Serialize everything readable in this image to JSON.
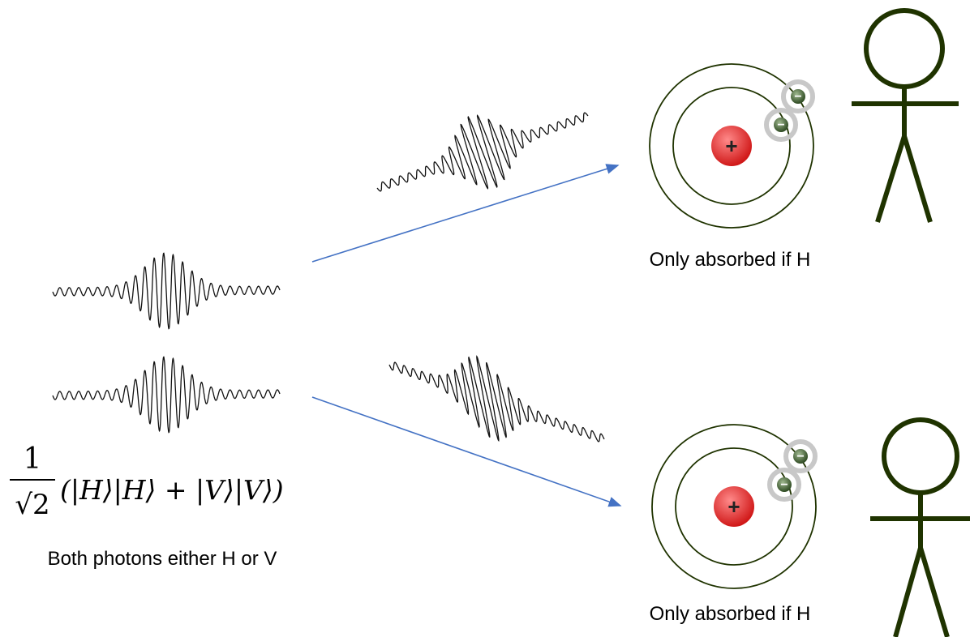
{
  "formula": {
    "numerator": "1",
    "denominator": "√2",
    "state": "(|H⟩|H⟩ + |V⟩|V⟩)"
  },
  "caption": "Both photons either H or V",
  "atoms": [
    {
      "nucleus": "+",
      "electrons": [
        "−",
        "−"
      ],
      "label": "Only absorbed if H"
    },
    {
      "nucleus": "+",
      "electrons": [
        "−",
        "−"
      ],
      "label": "Only absorbed if H"
    }
  ]
}
